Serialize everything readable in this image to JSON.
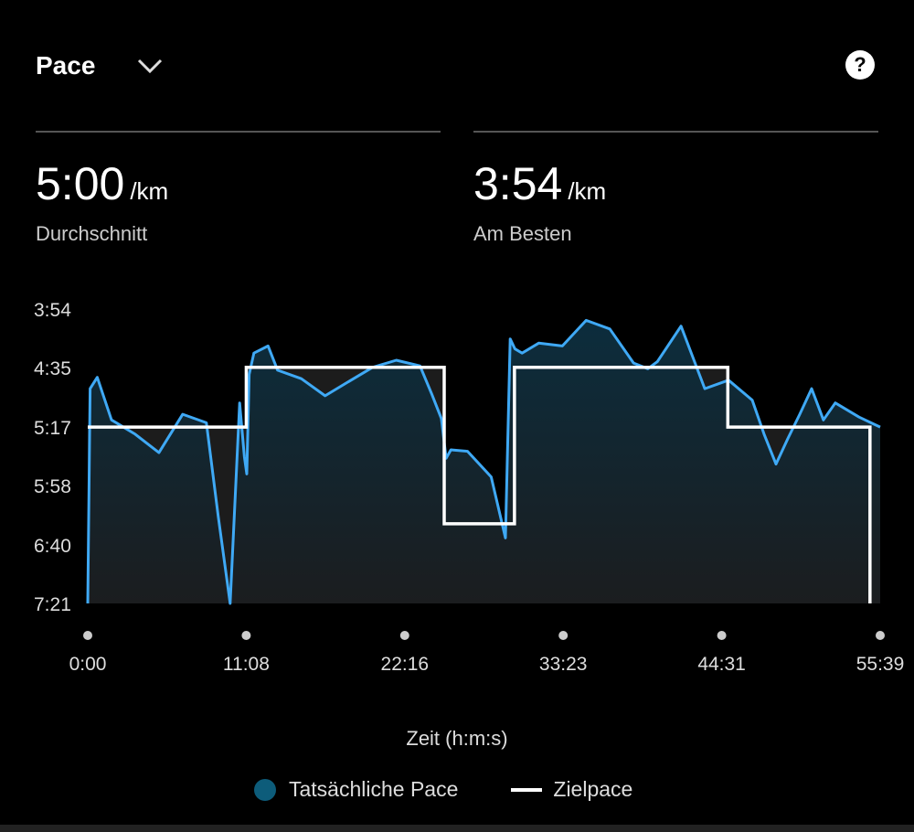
{
  "header": {
    "title": "Pace",
    "help_icon": "help-icon"
  },
  "stats": {
    "average": {
      "value": "5:00",
      "unit": "/km",
      "label": "Durchschnitt"
    },
    "best": {
      "value": "3:54",
      "unit": "/km",
      "label": "Am Besten"
    }
  },
  "colors": {
    "actual_pace": "#3fa9f5",
    "target_pace": "#ffffff",
    "background": "#000000",
    "legend_dot": "#0d5c7a"
  },
  "chart_data": {
    "type": "area",
    "title": "",
    "xlabel": "Zeit (h:m:s)",
    "ylabel": "",
    "x_ticks": [
      "0:00",
      "11:08",
      "22:16",
      "33:23",
      "44:31",
      "55:39"
    ],
    "y_ticks": [
      "3:54",
      "4:35",
      "5:17",
      "5:58",
      "6:40",
      "7:21"
    ],
    "x_range_seconds": [
      0,
      3339
    ],
    "y_range_seconds_per_km": [
      234,
      441
    ],
    "legend": [
      "Tatsächliche Pace",
      "Zielpace"
    ],
    "legend_placement": "bottom",
    "series": [
      {
        "name": "Tatsächliche Pace",
        "x_seconds": [
          0,
          10,
          40,
          100,
          200,
          300,
          400,
          500,
          550,
          600,
          640,
          660,
          670,
          680,
          700,
          760,
          800,
          900,
          1000,
          1100,
          1200,
          1300,
          1400,
          1450,
          1490,
          1510,
          1530,
          1600,
          1700,
          1760,
          1780,
          1800,
          1830,
          1900,
          2000,
          2100,
          2200,
          2300,
          2360,
          2400,
          2500,
          2550,
          2600,
          2700,
          2800,
          2850,
          2900,
          2950,
          3000,
          3050,
          3100,
          3150,
          3200,
          3250,
          3300,
          3339
        ],
        "pace_seconds_per_km": [
          441,
          290,
          282,
          312,
          322,
          335,
          308,
          314,
          380,
          441,
          300,
          338,
          350,
          280,
          265,
          260,
          277,
          283,
          295,
          285,
          275,
          270,
          274,
          294,
          311,
          339,
          333,
          334,
          352,
          395,
          255,
          262,
          265,
          258,
          260,
          242,
          248,
          272,
          276,
          271,
          246,
          268,
          290,
          284,
          298,
          322,
          343,
          325,
          308,
          290,
          312,
          300,
          305,
          310,
          314,
          317
        ],
        "summary": {
          "average": "5:00",
          "best": "3:54"
        }
      },
      {
        "name": "Zielpace",
        "segments": [
          {
            "from_seconds": 0,
            "to_seconds": 668,
            "pace": "5:17"
          },
          {
            "from_seconds": 668,
            "to_seconds": 1502,
            "pace": "4:35"
          },
          {
            "from_seconds": 1502,
            "to_seconds": 1798,
            "pace": "6:25"
          },
          {
            "from_seconds": 1798,
            "to_seconds": 2697,
            "pace": "4:35"
          },
          {
            "from_seconds": 2697,
            "to_seconds": 3296,
            "pace": "5:17"
          }
        ]
      }
    ],
    "grid": false
  }
}
